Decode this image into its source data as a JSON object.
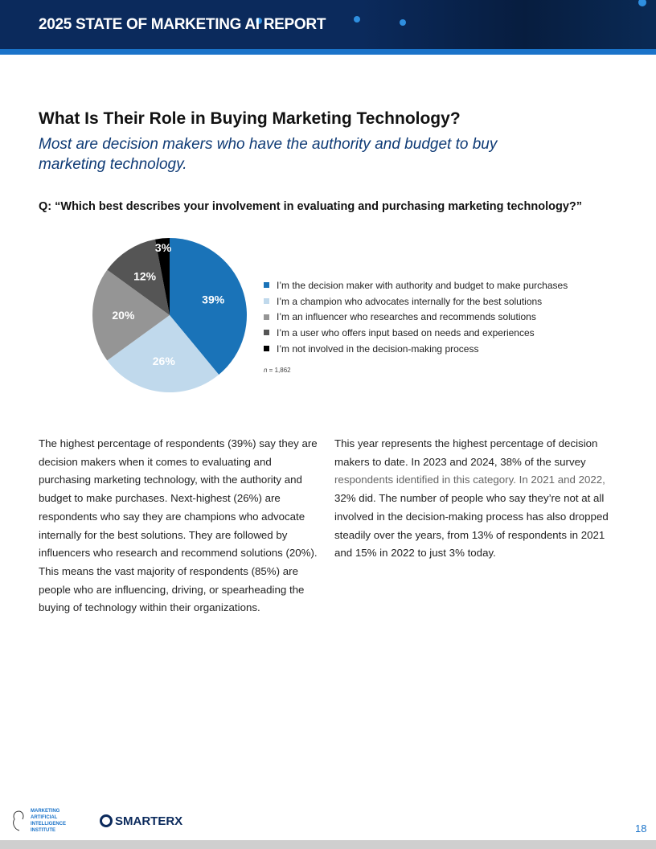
{
  "header": {
    "title": "2025 STATE OF MARKETING AI REPORT"
  },
  "heading": "What Is Their Role in Buying Marketing Technology?",
  "subheading": "Most are decision makers who have the authority and budget to buy marketing technology.",
  "question": "Q: “Which best describes your involvement in evaluating and purchasing marketing technology?”",
  "chart_data": {
    "type": "pie",
    "categories": [
      "I’m the decision maker with authority and budget to make purchases",
      "I’m a champion who advocates internally for the best solutions",
      "I’m an influencer who researches and recommends solutions",
      "I’m a user who offers input based on needs and experiences",
      "I’m not involved in the decision-making process"
    ],
    "values": [
      39,
      26,
      20,
      12,
      3
    ],
    "labels": [
      "39%",
      "26%",
      "20%",
      "12%",
      "3%"
    ],
    "colors": [
      "#1a73b8",
      "#c0d9ec",
      "#959595",
      "#555555",
      "#000000"
    ],
    "legend_position": "right",
    "note_prefix": "n",
    "note_value": " = 1,862"
  },
  "col1": "The highest percentage of respondents (39%) say they are decision makers when it comes to evaluating and purchasing marketing technology, with the authority and budget to make purchases. Next-highest (26%) are respondents who say they are champions who advocate internally for the best solutions. They are followed by influencers who research and recommend solutions (20%). This means the vast majority of respondents (85%) are people who are influencing, driving, or spearheading the buying of technology within their organizations.",
  "col2": {
    "a": "This year represents the highest percentage of decision makers to date. In 2023 and 2024, 38% of the survey ",
    "b": "respondents identified in this category. In 2021 and 2022,",
    "c": " 32% did. The number of people who say they’re not at all involved in the decision-making process has also dropped steadily over the years, from 13% of respondents in 2021 and 15% in 2022 to just 3% today."
  },
  "footer": {
    "logo1": "MARKETING ARTIFICIAL INTELLIGENCE INSTITUTE",
    "logo2": "SMARTERX",
    "page": "18"
  }
}
